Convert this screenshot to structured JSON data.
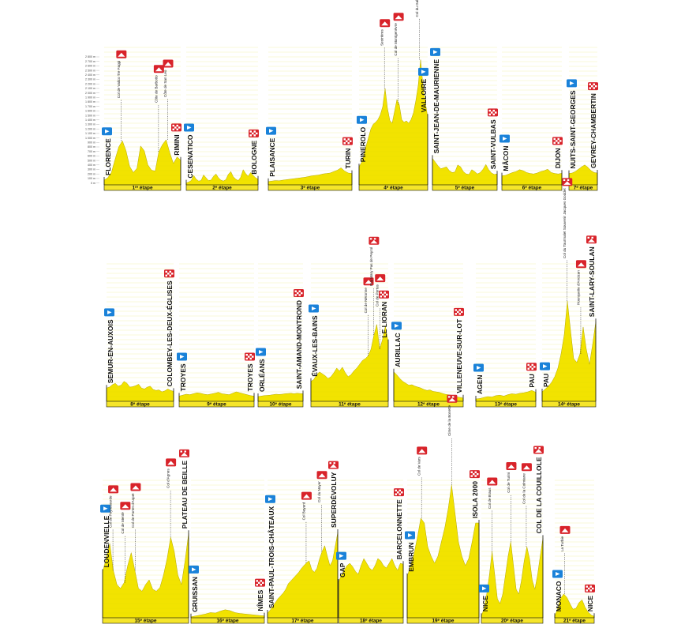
{
  "colors": {
    "profile_fill": "#F2E300",
    "profile_fill_dark": "#E1D000",
    "profile_outline": "#B4A800",
    "band": "#F5E52A",
    "flag_blue": "#1A82D9",
    "flag_red": "#D8232A",
    "dash": "#222222"
  },
  "altitude_scale": {
    "labels": [
      "2 800 m",
      "2 700 m",
      "2 600 m",
      "2 500 m",
      "2 400 m",
      "2 300 m",
      "2 200 m",
      "2 100 m",
      "2 000 m",
      "1 900 m",
      "1 800 m",
      "1 700 m",
      "1 600 m",
      "1 500 m",
      "1 400 m",
      "1 300 m",
      "1 200 m",
      "1 100 m",
      "1 000 m",
      "900 m",
      "800 m",
      "700 m",
      "600 m",
      "500 m",
      "400 m",
      "300 m",
      "200 m",
      "100 m",
      "0 m"
    ]
  },
  "stages": [
    {
      "id": 1,
      "label": "1ʳᵉ étape",
      "start": "FLORENCE",
      "finish": "RIMINI",
      "start_icon": "blue-flag-icon",
      "finish_icon": "checkered-flag-icon",
      "profile": [
        100,
        150,
        260,
        540,
        800,
        930,
        720,
        390,
        260,
        350,
        820,
        720,
        420,
        310,
        290,
        700,
        850,
        950,
        680,
        450,
        590,
        520
      ],
      "cols": [
        {
          "name": "Col de Valico Tre Faggi",
          "icon": "mountain-climb-icon",
          "pos": 0.22
        },
        {
          "name": "Côte de Barbotto",
          "icon": "mountain-climb-icon",
          "pos": 0.71
        },
        {
          "name": "Côte de San Leo",
          "icon": "mountain-climb-icon",
          "pos": 0.83
        }
      ]
    },
    {
      "id": 2,
      "label": "2ᵉ étape",
      "start": "CESENATICO",
      "finish": "BOLOGNE",
      "start_icon": "blue-flag-icon",
      "finish_icon": "checkered-flag-icon",
      "profile": [
        40,
        60,
        90,
        200,
        120,
        80,
        90,
        210,
        150,
        90,
        100,
        180,
        230,
        150,
        100,
        80,
        110,
        220,
        280,
        170,
        120,
        90,
        160,
        320,
        240,
        180,
        260,
        200,
        150,
        120
      ],
      "cols": []
    },
    {
      "id": 3,
      "label": "3ᵉ étape",
      "start": "PLAISANCE",
      "finish": "TURIN",
      "start_icon": "blue-flag-icon",
      "finish_icon": "checkered-flag-icon",
      "profile": [
        70,
        80,
        90,
        85,
        100,
        110,
        120,
        130,
        140,
        150,
        160,
        175,
        190,
        200,
        210,
        230,
        240,
        250,
        280,
        310,
        360,
        290,
        250,
        240
      ],
      "cols": []
    },
    {
      "id": 4,
      "label": "4ᵉ étape",
      "start": "PINEROLO",
      "finish": "VALLOIRE",
      "start_icon": "blue-flag-icon",
      "finish_icon": "blue-flag-icon",
      "profile": [
        380,
        470,
        620,
        820,
        1000,
        1180,
        1280,
        1320,
        1380,
        1480,
        1650,
        2035,
        1620,
        1360,
        1300,
        1550,
        1800,
        1690,
        1380,
        1320,
        1350,
        1300,
        1380,
        1520,
        1780,
        2100,
        2642,
        2100,
        1740,
        1430
      ],
      "cols": [
        {
          "name": "Sestrières",
          "icon": "mountain-climb-icon",
          "pos": 0.37
        },
        {
          "name": "Col de Montgenèvre",
          "icon": "mountain-climb-icon",
          "pos": 0.57
        },
        {
          "name": "Col du Galibier",
          "icon": "hors-categorie-climb-icon",
          "pos": 0.88
        }
      ]
    },
    {
      "id": 5,
      "label": "5ᵉ étape",
      "start": "SAINT-JEAN-DE-MAURIENNE",
      "finish": "SAINT-VULBAS",
      "start_icon": "blue-flag-icon",
      "finish_icon": "checkered-flag-icon",
      "profile": [
        560,
        480,
        400,
        340,
        360,
        380,
        300,
        260,
        270,
        420,
        380,
        280,
        230,
        220,
        320,
        280,
        230,
        260,
        330,
        430,
        320,
        250,
        220,
        230
      ],
      "cols": []
    },
    {
      "id": 6,
      "label": "6ᵉ étape",
      "start": "MÂCON",
      "finish": "DIJON",
      "start_icon": "blue-flag-icon",
      "finish_icon": "checkered-flag-icon",
      "profile": [
        190,
        200,
        230,
        260,
        280,
        320,
        300,
        260,
        240,
        230,
        250,
        280,
        300,
        330,
        260,
        240,
        230,
        245
      ],
      "cols": []
    },
    {
      "id": 7,
      "label": "7ᵉ étape",
      "start": "NUITS-SAINT-GEORGES",
      "finish": "GEVREY-CHAMBERTIN",
      "start_icon": "blue-flag-icon",
      "finish_icon": "checkered-flag-icon",
      "profile": [
        240,
        250,
        280,
        330,
        380,
        420,
        370,
        300,
        260,
        250
      ],
      "cols": []
    },
    {
      "id": 8,
      "label": "8ᵉ étape",
      "start": "SEMUR-EN-AUXOIS",
      "finish": "COLOMBEY-LES-DEUX-ÉGLISES",
      "start_icon": "blue-flag-icon",
      "finish_icon": "checkered-flag-icon",
      "profile": [
        280,
        300,
        350,
        380,
        320,
        340,
        420,
        380,
        300,
        310,
        330,
        360,
        280,
        260,
        300,
        320,
        250,
        230,
        240,
        200,
        220,
        260,
        230,
        210
      ],
      "cols": []
    },
    {
      "id": 9,
      "label": "9ᵉ étape",
      "start": "TROYES",
      "finish": "TROYES",
      "start_icon": "blue-flag-icon",
      "finish_icon": "checkered-flag-icon",
      "profile": [
        110,
        130,
        150,
        140,
        160,
        180,
        170,
        150,
        140,
        155,
        170,
        190,
        160,
        150,
        140,
        170,
        200,
        180,
        160,
        140,
        120,
        110
      ],
      "cols": []
    },
    {
      "id": 10,
      "label": "10ᵉ étape",
      "start": "ORLÉANS",
      "finish": "SAINT-AMAND-MONTROND",
      "start_icon": "blue-flag-icon",
      "finish_icon": "checkered-flag-icon",
      "profile": [
        100,
        110,
        120,
        125,
        130,
        140,
        150,
        145,
        150,
        160,
        165,
        170,
        160,
        170,
        165,
        160
      ],
      "cols": []
    },
    {
      "id": 11,
      "label": "11ᵉ étape",
      "start": "ÉVAUX-LES-BAINS",
      "finish": "LE LIORAN",
      "start_icon": "blue-flag-icon",
      "finish_icon": "checkered-flag-icon",
      "profile": [
        420,
        460,
        560,
        620,
        580,
        540,
        480,
        520,
        600,
        700,
        640,
        720,
        600,
        520,
        560,
        640,
        700,
        780,
        860,
        900,
        960,
        1100,
        1400,
        1620,
        1100,
        1300,
        1589,
        1240
      ],
      "cols": [
        {
          "name": "Col de Néronne",
          "icon": "mountain-climb-icon",
          "pos": 0.74
        },
        {
          "name": "Puy Mary Pas de Peyrol",
          "icon": "hors-categorie-climb-icon",
          "pos": 0.81
        },
        {
          "name": "Col de Pertus",
          "icon": "mountain-climb-icon",
          "pos": 0.89
        }
      ]
    },
    {
      "id": 12,
      "label": "12ᵉ étape",
      "start": "AURILLAC",
      "finish": "VILLENEUVE-SUR-LOT",
      "start_icon": "blue-flag-icon",
      "finish_icon": "checkered-flag-icon",
      "profile": [
        620,
        560,
        480,
        420,
        380,
        340,
        350,
        320,
        300,
        280,
        250,
        230,
        240,
        210,
        200,
        190,
        170,
        150,
        140,
        130,
        110,
        90,
        80,
        70
      ],
      "cols": []
    },
    {
      "id": 13,
      "label": "13ᵉ étape",
      "start": "AGEN",
      "finish": "PAU",
      "start_icon": "blue-flag-icon",
      "finish_icon": "checkered-flag-icon",
      "profile": [
        50,
        60,
        80,
        100,
        90,
        120,
        130,
        110,
        140,
        160,
        150,
        170,
        180,
        200,
        230,
        190
      ],
      "cols": []
    },
    {
      "id": 14,
      "label": "14ᵉ étape",
      "start": "PAU",
      "finish": "SAINT-LARY-SOULAN",
      "start_icon": "blue-flag-icon",
      "finish_icon": "hors-categorie-climb-icon",
      "profile": [
        200,
        260,
        320,
        400,
        520,
        700,
        1000,
        1400,
        2115,
        1500,
        900,
        820,
        1000,
        1569,
        1100,
        780,
        1200,
        1680
      ],
      "cols": [
        {
          "name": "Col du Tourmalet Souvenir Jacques Goddet",
          "icon": "hors-categorie-climb-icon",
          "pos": 0.46
        },
        {
          "name": "Hourquette d'Ancizan",
          "icon": "mountain-climb-icon",
          "pos": 0.72
        }
      ]
    },
    {
      "id": 15,
      "label": "15ᵉ étape",
      "start": "LOUDENVIELLE",
      "finish": "PLATEAU DE BEILLE",
      "start_icon": "blue-flag-icon",
      "finish_icon": "hors-categorie-climb-icon",
      "profile": [
        960,
        1250,
        1569,
        1000,
        700,
        620,
        740,
        1100,
        1375,
        1000,
        620,
        560,
        700,
        800,
        600,
        560,
        640,
        900,
        1250,
        1700,
        1400,
        900,
        700,
        1200,
        1780
      ],
      "cols": [
        {
          "name": "Col de Peyresourde",
          "icon": "mountain-climb-icon",
          "pos": 0.12
        },
        {
          "name": "Col de Menté",
          "icon": "mountain-climb-icon",
          "pos": 0.26
        },
        {
          "name": "Col de Portet-d'Aspet",
          "icon": "mountain-climb-icon",
          "pos": 0.38
        },
        {
          "name": "Col d'Agnes",
          "icon": "mountain-climb-icon",
          "pos": 0.79
        }
      ]
    },
    {
      "id": 16,
      "label": "16ᵉ étape",
      "start": "GRUISSAN",
      "finish": "NÎMES",
      "start_icon": "blue-flag-icon",
      "finish_icon": "checkered-flag-icon",
      "profile": [
        20,
        40,
        60,
        80,
        110,
        100,
        140,
        170,
        150,
        110,
        90,
        80,
        70,
        60,
        50,
        40
      ],
      "cols": []
    },
    {
      "id": 17,
      "label": "17ᵉ étape",
      "start": "SAINT-PAUL-TROIS-CHÂTEAUX",
      "finish": "SUPERDÉVOLUY",
      "start_icon": "blue-flag-icon",
      "finish_icon": "hors-categorie-climb-icon",
      "profile": [
        100,
        160,
        240,
        320,
        400,
        460,
        520,
        600,
        720,
        780,
        840,
        900,
        960,
        1040,
        1100,
        1160,
        1200,
        1020,
        960,
        1040,
        1240,
        1400,
        1520,
        1300,
        1100,
        1200,
        1500,
        1800
      ],
      "cols": [
        {
          "name": "Col Bayard",
          "icon": "mountain-climb-icon",
          "pos": 0.55
        },
        {
          "name": "Col du Noyer",
          "icon": "mountain-climb-icon",
          "pos": 0.77
        }
      ]
    },
    {
      "id": 18,
      "label": "18ᵉ étape",
      "start": "GAP",
      "finish": "BARCELONNETTE",
      "start_icon": "blue-flag-icon",
      "finish_icon": "checkered-flag-icon",
      "profile": [
        750,
        900,
        1000,
        1100,
        1150,
        1080,
        980,
        920,
        1100,
        1250,
        1150,
        1050,
        1000,
        1100,
        1250,
        1200,
        1100,
        1050,
        1150,
        1250,
        1100,
        1000,
        1150,
        1130
      ],
      "cols": []
    },
    {
      "id": 19,
      "label": "19ᵉ étape",
      "start": "EMBRUN",
      "finish": "ISOLA 2000",
      "start_icon": "blue-flag-icon",
      "finish_icon": "checkered-flag-icon",
      "profile": [
        870,
        1100,
        1350,
        1700,
        2100,
        2000,
        1500,
        1300,
        1150,
        1300,
        1600,
        1900,
        2300,
        2802,
        2200,
        1600,
        1300,
        1100,
        1250,
        1600,
        2000,
        2000
      ],
      "cols": [
        {
          "name": "Col de Vars",
          "icon": "mountain-climb-icon",
          "pos": 0.2
        },
        {
          "name": "Cime de la Bonette",
          "icon": "hors-categorie-climb-icon",
          "pos": 0.62
        }
      ]
    },
    {
      "id": 20,
      "label": "20ᵉ étape",
      "start": "NICE",
      "finish": "COL DE LA COUILLOLE",
      "start_icon": "blue-flag-icon",
      "finish_icon": "hors-categorie-climb-icon",
      "profile": [
        30,
        200,
        500,
        900,
        1400,
        900,
        400,
        300,
        500,
        900,
        1300,
        1604,
        1100,
        600,
        500,
        800,
        1200,
        1500,
        1250,
        800,
        600,
        900,
        1300,
        1678
      ],
      "cols": [
        {
          "name": "Col de Braus",
          "icon": "mountain-climb-icon",
          "pos": 0.17
        },
        {
          "name": "Col de Turini",
          "icon": "mountain-climb-icon",
          "pos": 0.48
        },
        {
          "name": "Col de la Colmiane",
          "icon": "mountain-climb-icon",
          "pos": 0.73
        }
      ]
    },
    {
      "id": 21,
      "label": "21ᵉ étape",
      "start": "MONACO",
      "finish": "NICE",
      "start_icon": "blue-flag-icon",
      "finish_icon": "checkered-flag-icon",
      "profile": [
        30,
        200,
        420,
        500,
        430,
        300,
        180,
        200,
        320,
        380,
        220,
        120,
        60,
        30
      ],
      "cols": [
        {
          "name": "La Turbie",
          "icon": "mountain-climb-icon",
          "pos": 0.25
        }
      ]
    }
  ]
}
